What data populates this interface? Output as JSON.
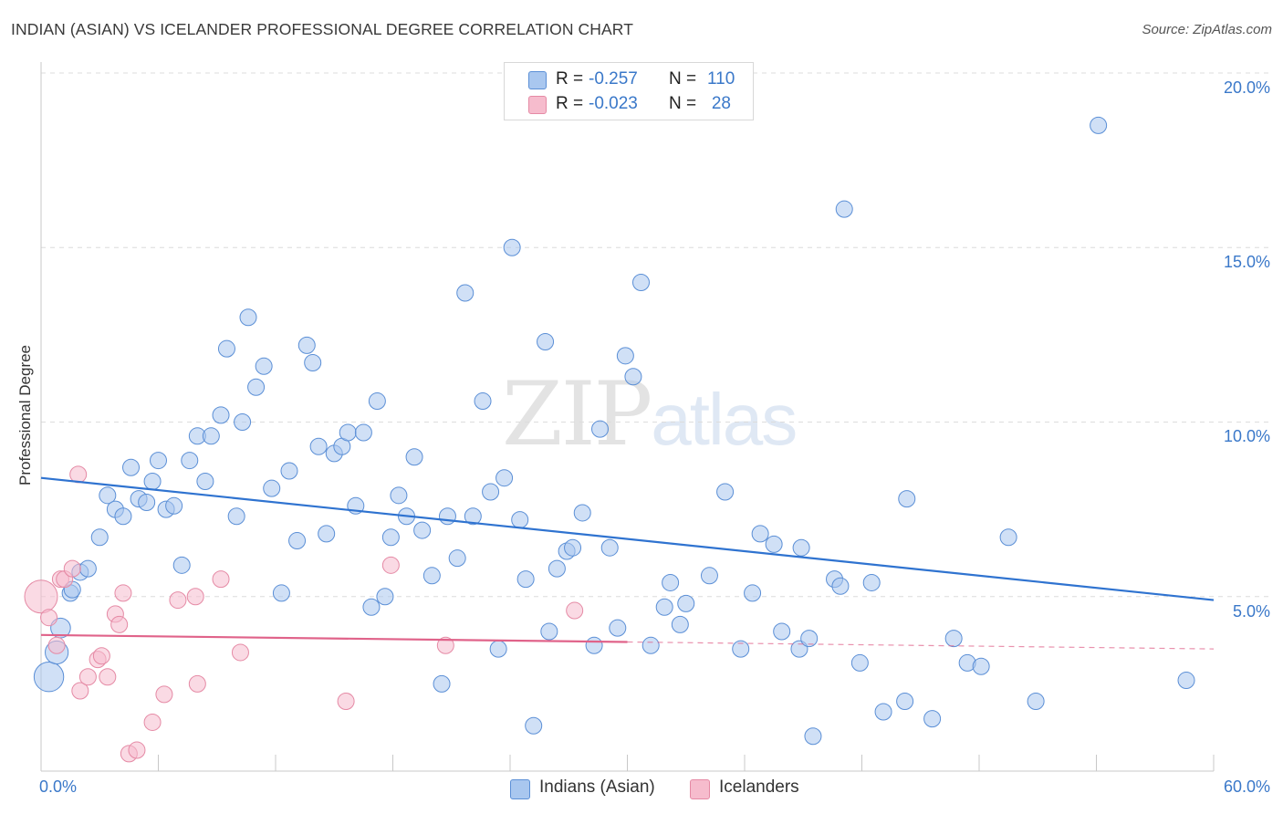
{
  "title": "INDIAN (ASIAN) VS ICELANDER PROFESSIONAL DEGREE CORRELATION CHART",
  "source": "Source: ZipAtlas.com",
  "watermark": {
    "part1": "ZIP",
    "part2": "atlas"
  },
  "legend": {
    "rows": [
      {
        "r_label": "R =",
        "r_value": "-0.257",
        "n_label": "N =",
        "n_value": "110",
        "color": "#a9c7ef",
        "border": "#5b8fd6"
      },
      {
        "r_label": "R =",
        "r_value": "-0.023",
        "n_label": "N =",
        "n_value": "28",
        "color": "#f6bccd",
        "border": "#e58aa5"
      }
    ]
  },
  "bottom_legend": [
    {
      "label": "Indians (Asian)",
      "color": "#a9c7ef",
      "border": "#5b8fd6"
    },
    {
      "label": "Icelanders",
      "color": "#f6bccd",
      "border": "#e58aa5"
    }
  ],
  "chart_data": {
    "type": "scatter",
    "title": "INDIAN (ASIAN) VS ICELANDER PROFESSIONAL DEGREE CORRELATION CHART",
    "xlabel": "",
    "ylabel": "Professional Degree",
    "xlim": [
      0,
      60
    ],
    "ylim": [
      0,
      20
    ],
    "x_tick_labels": [
      "0.0%",
      "60.0%"
    ],
    "y_tick_labels": [
      "5.0%",
      "10.0%",
      "15.0%",
      "20.0%"
    ],
    "y_ticks": [
      5,
      10,
      15,
      20
    ],
    "grid": "horizontal dashed",
    "legend_position": "top-center",
    "series": [
      {
        "name": "Indians (Asian)",
        "color": "#5b8fd6",
        "fill": "#a9c7ef",
        "trend": {
          "x": [
            0,
            60
          ],
          "y": [
            8.4,
            4.9
          ],
          "color": "#2f73d0"
        },
        "points": [
          [
            0.4,
            2.7,
            1.8
          ],
          [
            0.8,
            3.4,
            1.4
          ],
          [
            1.0,
            4.1,
            1.2
          ],
          [
            1.5,
            5.1,
            1
          ],
          [
            1.6,
            5.2,
            1
          ],
          [
            2.0,
            5.7,
            1
          ],
          [
            2.4,
            5.8,
            1
          ],
          [
            3.0,
            6.7,
            1
          ],
          [
            3.4,
            7.9,
            1
          ],
          [
            3.8,
            7.5,
            1
          ],
          [
            4.2,
            7.3,
            1
          ],
          [
            4.6,
            8.7,
            1
          ],
          [
            5.0,
            7.8,
            1
          ],
          [
            5.4,
            7.7,
            1
          ],
          [
            5.7,
            8.3,
            1
          ],
          [
            6.0,
            8.9,
            1
          ],
          [
            6.4,
            7.5,
            1
          ],
          [
            6.8,
            7.6,
            1
          ],
          [
            7.2,
            5.9,
            1
          ],
          [
            7.6,
            8.9,
            1
          ],
          [
            8.0,
            9.6,
            1
          ],
          [
            8.4,
            8.3,
            1
          ],
          [
            8.7,
            9.6,
            1
          ],
          [
            9.2,
            10.2,
            1
          ],
          [
            9.5,
            12.1,
            1
          ],
          [
            10.0,
            7.3,
            1
          ],
          [
            10.3,
            10.0,
            1
          ],
          [
            10.6,
            13.0,
            1
          ],
          [
            11.0,
            11.0,
            1
          ],
          [
            11.4,
            11.6,
            1
          ],
          [
            11.8,
            8.1,
            1
          ],
          [
            12.3,
            5.1,
            1
          ],
          [
            12.7,
            8.6,
            1
          ],
          [
            13.1,
            6.6,
            1
          ],
          [
            13.6,
            12.2,
            1
          ],
          [
            13.9,
            11.7,
            1
          ],
          [
            14.2,
            9.3,
            1
          ],
          [
            14.6,
            6.8,
            1
          ],
          [
            15.0,
            9.1,
            1
          ],
          [
            15.4,
            9.3,
            1
          ],
          [
            15.7,
            9.7,
            1
          ],
          [
            16.1,
            7.6,
            1
          ],
          [
            16.5,
            9.7,
            1
          ],
          [
            16.9,
            4.7,
            1
          ],
          [
            17.2,
            10.6,
            1
          ],
          [
            17.6,
            5.0,
            1
          ],
          [
            17.9,
            6.7,
            1
          ],
          [
            18.3,
            7.9,
            1
          ],
          [
            18.7,
            7.3,
            1
          ],
          [
            19.1,
            9.0,
            1
          ],
          [
            19.5,
            6.9,
            1
          ],
          [
            20.0,
            5.6,
            1
          ],
          [
            20.5,
            2.5,
            1
          ],
          [
            20.8,
            7.3,
            1
          ],
          [
            21.3,
            6.1,
            1
          ],
          [
            21.7,
            13.7,
            1
          ],
          [
            22.1,
            7.3,
            1
          ],
          [
            22.6,
            10.6,
            1
          ],
          [
            23.0,
            8.0,
            1
          ],
          [
            23.4,
            3.5,
            1
          ],
          [
            23.7,
            8.4,
            1
          ],
          [
            24.1,
            15.0,
            1
          ],
          [
            24.5,
            7.2,
            1
          ],
          [
            24.8,
            5.5,
            1
          ],
          [
            25.2,
            1.3,
            1
          ],
          [
            25.8,
            12.3,
            1
          ],
          [
            26.0,
            4.0,
            1
          ],
          [
            26.4,
            5.8,
            1
          ],
          [
            26.9,
            6.3,
            1
          ],
          [
            27.2,
            6.4,
            1
          ],
          [
            27.7,
            7.4,
            1
          ],
          [
            28.3,
            3.6,
            1
          ],
          [
            28.6,
            9.8,
            1
          ],
          [
            29.1,
            6.4,
            1
          ],
          [
            29.5,
            4.1,
            1
          ],
          [
            29.9,
            11.9,
            1
          ],
          [
            30.3,
            11.3,
            1
          ],
          [
            30.7,
            14.0,
            1
          ],
          [
            31.2,
            3.6,
            1
          ],
          [
            31.9,
            4.7,
            1
          ],
          [
            32.2,
            5.4,
            1
          ],
          [
            32.7,
            4.2,
            1
          ],
          [
            33.0,
            4.8,
            1
          ],
          [
            34.2,
            5.6,
            1
          ],
          [
            35.0,
            8.0,
            1
          ],
          [
            35.8,
            3.5,
            1
          ],
          [
            36.4,
            5.1,
            1
          ],
          [
            36.8,
            6.8,
            1
          ],
          [
            37.5,
            6.5,
            1
          ],
          [
            37.9,
            4.0,
            1
          ],
          [
            38.8,
            3.5,
            1
          ],
          [
            38.9,
            6.4,
            1
          ],
          [
            39.3,
            3.8,
            1
          ],
          [
            39.5,
            1.0,
            1
          ],
          [
            40.6,
            5.5,
            1
          ],
          [
            40.9,
            5.3,
            1
          ],
          [
            41.1,
            16.1,
            1
          ],
          [
            41.9,
            3.1,
            1
          ],
          [
            42.5,
            5.4,
            1
          ],
          [
            43.1,
            1.7,
            1
          ],
          [
            44.2,
            2.0,
            1
          ],
          [
            44.3,
            7.8,
            1
          ],
          [
            45.6,
            1.5,
            1
          ],
          [
            46.7,
            3.8,
            1
          ],
          [
            47.4,
            3.1,
            1
          ],
          [
            48.1,
            3.0,
            1
          ],
          [
            49.5,
            6.7,
            1
          ],
          [
            50.9,
            2.0,
            1
          ],
          [
            54.1,
            18.5,
            1
          ],
          [
            58.6,
            2.6,
            1
          ]
        ]
      },
      {
        "name": "Icelanders",
        "color": "#e58aa5",
        "fill": "#f6bccd",
        "trend": {
          "x": [
            0,
            30
          ],
          "y": [
            3.9,
            3.7
          ],
          "dashed_to": [
            60,
            3.5
          ],
          "color": "#e0638a"
        },
        "points": [
          [
            0.0,
            5.0,
            2.0
          ],
          [
            0.4,
            4.4,
            1
          ],
          [
            0.8,
            3.6,
            1
          ],
          [
            1.0,
            5.5,
            1
          ],
          [
            1.2,
            5.5,
            1
          ],
          [
            1.6,
            5.8,
            1
          ],
          [
            1.9,
            8.5,
            1
          ],
          [
            2.0,
            2.3,
            1
          ],
          [
            2.4,
            2.7,
            1
          ],
          [
            2.9,
            3.2,
            1
          ],
          [
            3.1,
            3.3,
            1
          ],
          [
            3.4,
            2.7,
            1
          ],
          [
            3.8,
            4.5,
            1
          ],
          [
            4.0,
            4.2,
            1
          ],
          [
            4.2,
            5.1,
            1
          ],
          [
            4.5,
            0.5,
            1
          ],
          [
            4.9,
            0.6,
            1
          ],
          [
            5.7,
            1.4,
            1
          ],
          [
            6.3,
            2.2,
            1
          ],
          [
            7.0,
            4.9,
            1
          ],
          [
            7.9,
            5.0,
            1
          ],
          [
            8.0,
            2.5,
            1
          ],
          [
            9.2,
            5.5,
            1
          ],
          [
            10.2,
            3.4,
            1
          ],
          [
            15.6,
            2.0,
            1
          ],
          [
            17.9,
            5.9,
            1
          ],
          [
            20.7,
            3.6,
            1
          ],
          [
            27.3,
            4.6,
            1
          ]
        ]
      }
    ]
  }
}
